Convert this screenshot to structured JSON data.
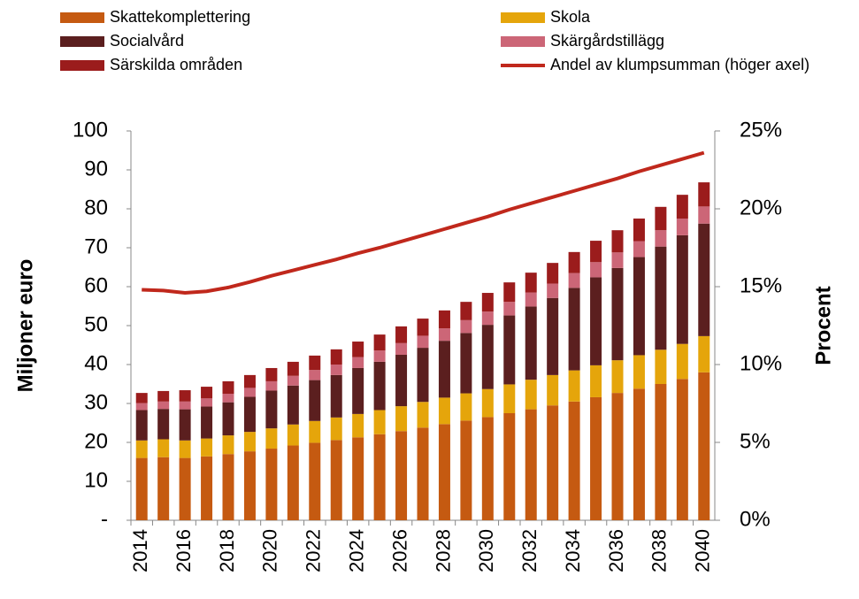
{
  "chart_data": {
    "type": "bar",
    "stacked": true,
    "y_label": "Miljoner euro",
    "y2_label": "Procent",
    "categories": [
      "2014",
      null,
      "2016",
      null,
      "2018",
      null,
      "2020",
      null,
      "2022",
      null,
      "2024",
      null,
      "2026",
      null,
      "2028",
      null,
      "2030",
      null,
      "2032",
      null,
      "2034",
      null,
      "2036",
      null,
      "2038",
      null,
      "2040"
    ],
    "series": [
      {
        "name": "Skattekomplettering",
        "color": "#c55a11",
        "values": [
          16,
          16.2,
          16,
          16.4,
          17,
          17.7,
          18.4,
          19.2,
          19.9,
          20.6,
          21.3,
          22.1,
          22.9,
          23.8,
          24.7,
          25.6,
          26.5,
          27.5,
          28.5,
          29.5,
          30.5,
          31.6,
          32.7,
          33.8,
          35,
          36.3,
          38
        ]
      },
      {
        "name": "Skola",
        "color": "#e5a50b",
        "values": [
          4.5,
          4.6,
          4.5,
          4.6,
          4.8,
          5,
          5.2,
          5.4,
          5.6,
          5.8,
          6,
          6.2,
          6.4,
          6.6,
          6.8,
          7,
          7.2,
          7.4,
          7.6,
          7.8,
          8,
          8.2,
          8.4,
          8.6,
          8.8,
          9,
          9.3
        ]
      },
      {
        "name": "Socialvård",
        "color": "#5b1f1f",
        "values": [
          7.8,
          7.8,
          8.0,
          8.2,
          8.5,
          9.0,
          9.7,
          10.0,
          10.5,
          10.9,
          11.8,
          12.4,
          13.2,
          13.9,
          14.6,
          15.5,
          16.5,
          17.7,
          18.8,
          19.8,
          21.2,
          22.6,
          23.7,
          25.2,
          26.5,
          27.9,
          28.9
        ]
      },
      {
        "name": "Skärgårdstillägg",
        "color": "#cc6677",
        "values": [
          1.8,
          1.9,
          2.0,
          2.1,
          2.2,
          2.3,
          2.4,
          2.5,
          2.6,
          2.7,
          2.8,
          2.9,
          3.0,
          3.1,
          3.2,
          3.3,
          3.4,
          3.5,
          3.6,
          3.7,
          3.8,
          3.9,
          4.0,
          4.1,
          4.2,
          4.3,
          4.4
        ]
      },
      {
        "name": "Särskilda områden",
        "color": "#9b1c1c",
        "values": [
          2.6,
          2.7,
          2.9,
          3.0,
          3.2,
          3.3,
          3.4,
          3.6,
          3.7,
          3.9,
          4.0,
          4.1,
          4.3,
          4.4,
          4.6,
          4.7,
          4.8,
          5.0,
          5.1,
          5.3,
          5.4,
          5.5,
          5.7,
          5.8,
          6.0,
          6.1,
          6.2
        ]
      },
      {
        "name": "Andel av klumpsumman (höger axel)",
        "color": "#c0281c",
        "type": "line",
        "axis": "y2",
        "values": [
          14.8,
          14.75,
          14.6,
          14.7,
          14.95,
          15.3,
          15.7,
          16.05,
          16.4,
          16.75,
          17.15,
          17.5,
          17.9,
          18.3,
          18.7,
          19.1,
          19.5,
          19.95,
          20.35,
          20.75,
          21.15,
          21.55,
          21.95,
          22.4,
          22.8,
          23.2,
          23.6
        ]
      }
    ],
    "ylim": [
      0,
      100
    ],
    "yticks": [
      {
        "value": 0,
        "label": "-"
      },
      10,
      20,
      30,
      40,
      50,
      60,
      70,
      80,
      90,
      100
    ],
    "y2lim": [
      0,
      25
    ],
    "y2ticks": [
      {
        "value": 0,
        "label": "0%"
      },
      {
        "value": 5,
        "label": "5%"
      },
      {
        "value": 10,
        "label": "10%"
      },
      {
        "value": 15,
        "label": "15%"
      },
      {
        "value": 20,
        "label": "20%"
      },
      {
        "value": 25,
        "label": "25%"
      }
    ],
    "grid": false,
    "legend": "top"
  }
}
